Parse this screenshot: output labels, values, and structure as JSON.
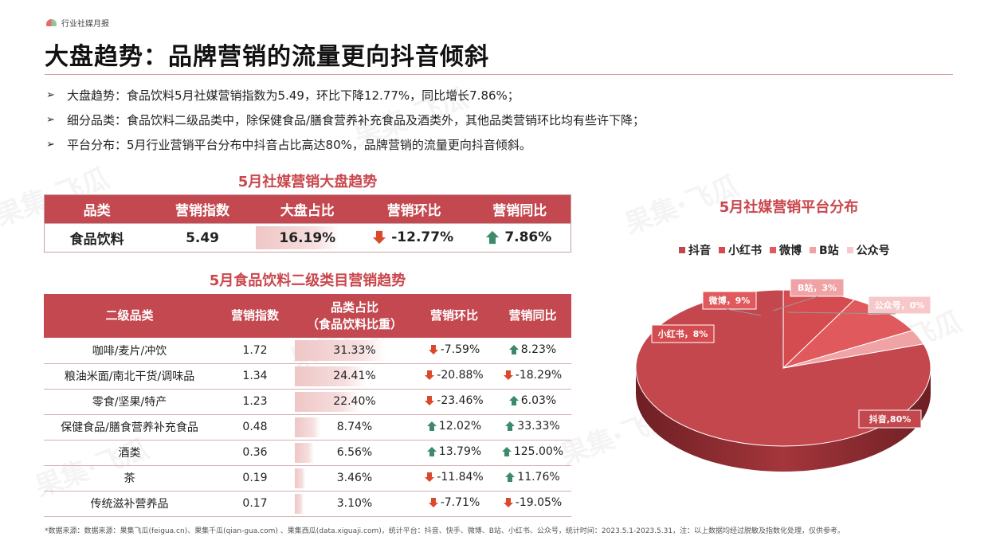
{
  "header": {
    "brand": "行业社媒月报",
    "title": "大盘趋势：品牌营销的流量更向抖音倾斜"
  },
  "bullets": [
    "大盘趋势：食品饮料5月社媒营销指数为5.49，环比下降12.77%，同比增长7.86%；",
    "细分品类：食品饮料二级品类中，除保健食品/膳食营养补充食品及酒类外，其他品类营销环比均有些许下降；",
    "平台分布：5月行业营销平台分布中抖音占比高达80%，品牌营销的流量更向抖音倾斜。"
  ],
  "watermark": "果集·飞瓜",
  "overview": {
    "title": "5月社媒营销大盘趋势",
    "headers": [
      "品类",
      "营销指数",
      "大盘占比",
      "营销环比",
      "营销同比"
    ],
    "row": {
      "category": "食品饮料",
      "index": "5.49",
      "share": "16.19%",
      "share_value": 16.19,
      "mom": "-12.77%",
      "mom_dir": "down",
      "yoy": "7.86%",
      "yoy_dir": "up"
    }
  },
  "subcategories": {
    "title": "5月食品饮料二级类目营销趋势",
    "headers": [
      "二级品类",
      "营销指数",
      "品类占比",
      "（食品饮料比重）",
      "营销环比",
      "营销同比"
    ],
    "rows": [
      {
        "name": "咖啡/麦片/冲饮",
        "index": "1.72",
        "share": "31.33%",
        "share_value": 31.33,
        "mom": "-7.59%",
        "mom_dir": "down",
        "yoy": "8.23%",
        "yoy_dir": "up"
      },
      {
        "name": "粮油米面/南北干货/调味品",
        "index": "1.34",
        "share": "24.41%",
        "share_value": 24.41,
        "mom": "-20.88%",
        "mom_dir": "down",
        "yoy": "-18.29%",
        "yoy_dir": "down"
      },
      {
        "name": "零食/坚果/特产",
        "index": "1.23",
        "share": "22.40%",
        "share_value": 22.4,
        "mom": "-23.46%",
        "mom_dir": "down",
        "yoy": "6.03%",
        "yoy_dir": "up"
      },
      {
        "name": "保健食品/膳食营养补充食品",
        "index": "0.48",
        "share": "8.74%",
        "share_value": 8.74,
        "mom": "12.02%",
        "mom_dir": "up",
        "yoy": "33.33%",
        "yoy_dir": "up"
      },
      {
        "name": "酒类",
        "index": "0.36",
        "share": "6.56%",
        "share_value": 6.56,
        "mom": "13.79%",
        "mom_dir": "up",
        "yoy": "125.00%",
        "yoy_dir": "up"
      },
      {
        "name": "茶",
        "index": "0.19",
        "share": "3.46%",
        "share_value": 3.46,
        "mom": "-11.84%",
        "mom_dir": "down",
        "yoy": "11.76%",
        "yoy_dir": "up"
      },
      {
        "name": "传统滋补营养品",
        "index": "0.17",
        "share": "3.10%",
        "share_value": 3.1,
        "mom": "-7.71%",
        "mom_dir": "down",
        "yoy": "-19.05%",
        "yoy_dir": "down"
      }
    ]
  },
  "chart_data": {
    "type": "pie",
    "title": "5月社媒营销平台分布",
    "legend_position": "top",
    "labels": [
      "抖音",
      "小红书",
      "微博",
      "B站",
      "公众号"
    ],
    "values": [
      80,
      8,
      9,
      3,
      0
    ],
    "data_labels": [
      "抖音,80%",
      "小红书，8%",
      "微博，9%",
      "B站，3%",
      "公众号，0%"
    ],
    "colors": [
      "#c4474d",
      "#d44c50",
      "#e0595c",
      "#f0a3a5",
      "#f7c8c9"
    ]
  },
  "footnote": "*数据来源：数据来源：果集飞瓜(feigua.cn)、果集千瓜(qian-gua.com) 、果集西瓜(data.xiguaji.com)，统计平台：抖音、快手、微博、B站、小红书、公众号，统计时间：2023.5.1-2023.5.31，注：以上数据均经过脱敏及指数化处理，仅供参考。"
}
